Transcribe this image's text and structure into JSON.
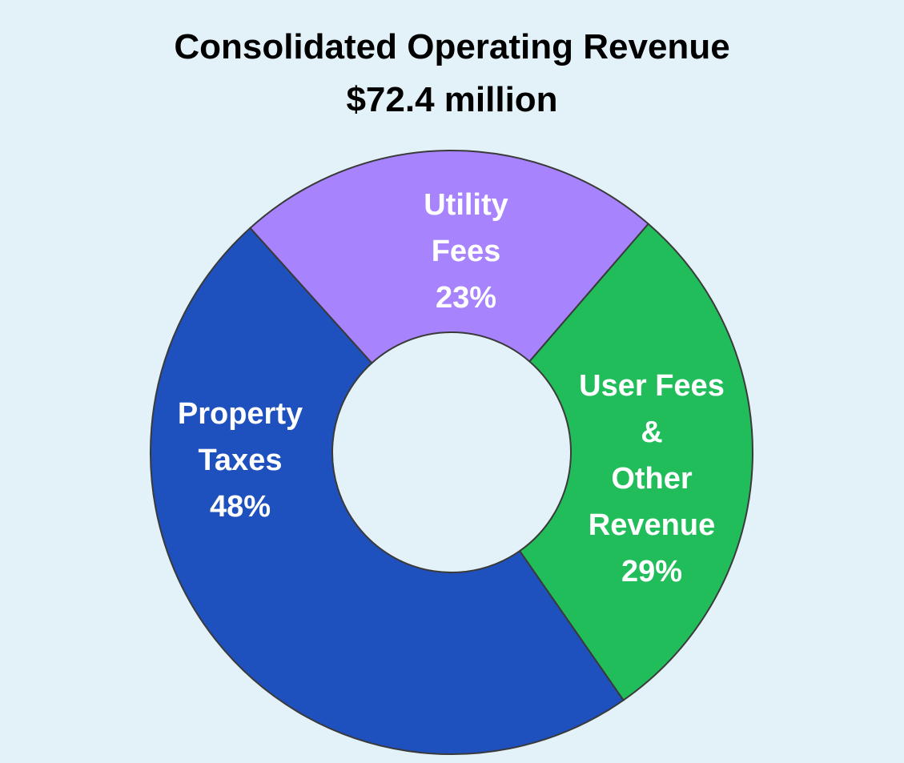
{
  "chart_data": {
    "type": "pie",
    "variant": "donut",
    "title": "Consolidated Operating Revenue",
    "subtitle": "$72.4 million",
    "slices": [
      {
        "key": "utility",
        "label_lines": [
          "Utility",
          "Fees",
          "23%"
        ],
        "value": 23,
        "color": "#a783fd"
      },
      {
        "key": "user",
        "label_lines": [
          "User Fees",
          "&",
          "Other",
          "Revenue",
          "29%"
        ],
        "value": 29,
        "color": "#22bd5b"
      },
      {
        "key": "property",
        "label_lines": [
          "Property",
          "Taxes",
          "48%"
        ],
        "value": 48,
        "color": "#1e51bd"
      }
    ],
    "slice_outline_color": "#3a3a3a",
    "legend": "none"
  }
}
